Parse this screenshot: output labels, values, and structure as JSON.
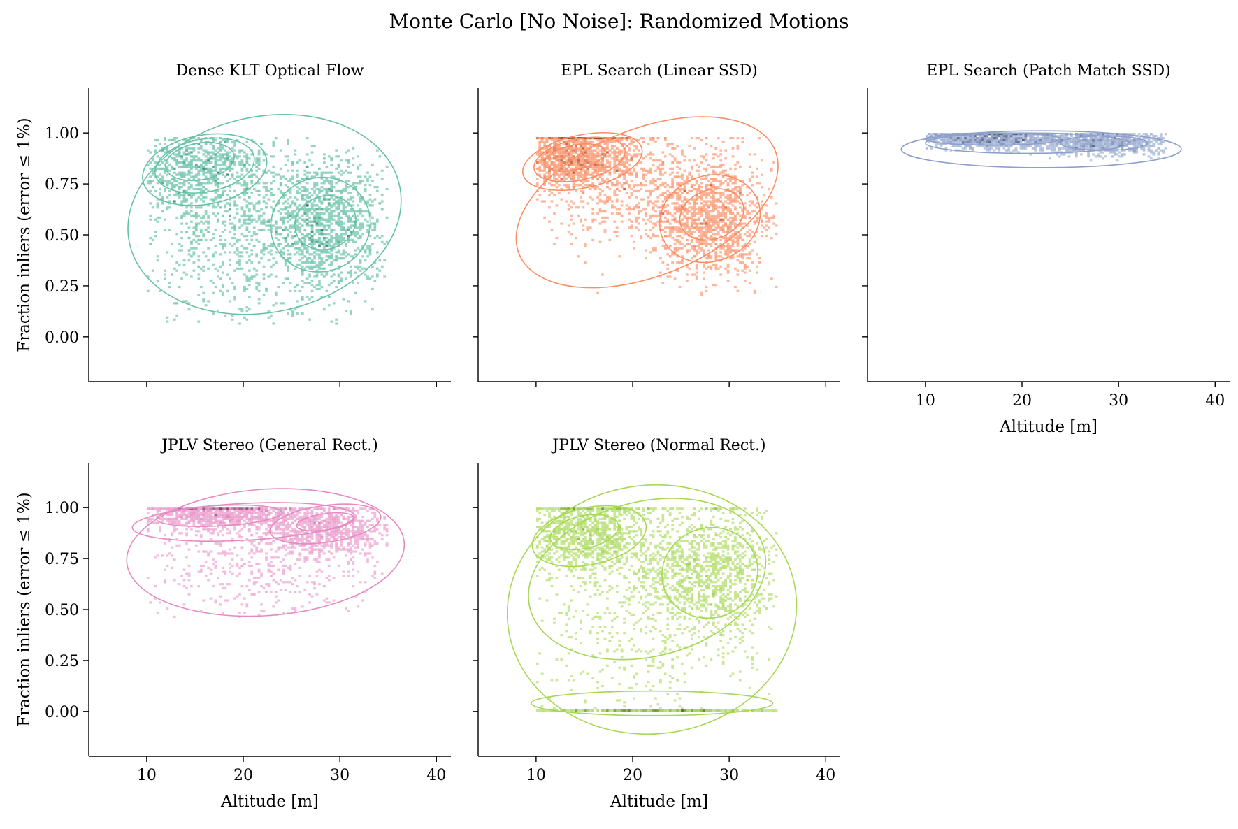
{
  "figure_title": "Monte Carlo [No Noise]: Randomized Motions",
  "chart_data": [
    {
      "type": "heatmap",
      "title": "Dense KLT Optical Flow",
      "xlabel": "",
      "ylabel": "Fraction inliers (error ≤ 1%)",
      "color": "#66c2a5",
      "xlim": [
        4,
        41.5
      ],
      "ylim": [
        -0.22,
        1.22
      ],
      "xticks": [
        10,
        20,
        30,
        40
      ],
      "yticks": [
        0.0,
        0.25,
        0.5,
        0.75,
        1.0
      ],
      "xtick_labels": [],
      "ytick_labels": [
        "0.00",
        "0.25",
        "0.50",
        "0.75",
        "1.00"
      ],
      "clusters": [
        {
          "x": 15.5,
          "y": 0.83,
          "sx": 3.6,
          "sy": 0.12,
          "n": 900,
          "cap": 1.0
        },
        {
          "x": 28.5,
          "y": 0.55,
          "sx": 3.2,
          "sy": 0.16,
          "n": 1100,
          "cap": 1.0
        },
        {
          "x": 20.0,
          "y": 0.5,
          "sx": 6.5,
          "sy": 0.25,
          "n": 900,
          "cap": 1.0
        }
      ],
      "xrange": [
        10,
        35
      ],
      "yrange": [
        0.06,
        0.98
      ],
      "contours": [
        {
          "x": 22.2,
          "y": 0.6,
          "rx": 14.3,
          "ry": 0.48,
          "tilt": -12
        },
        {
          "x": 16.0,
          "y": 0.82,
          "rx": 6.5,
          "ry": 0.17,
          "tilt": -10
        },
        {
          "x": 16.0,
          "y": 0.84,
          "rx": 5.2,
          "ry": 0.13,
          "tilt": -10
        },
        {
          "x": 15.5,
          "y": 0.86,
          "rx": 3.6,
          "ry": 0.09,
          "tilt": -10
        },
        {
          "x": 28.0,
          "y": 0.55,
          "rx": 5.2,
          "ry": 0.23,
          "tilt": -20
        },
        {
          "x": 28.5,
          "y": 0.56,
          "rx": 3.2,
          "ry": 0.13,
          "tilt": -20
        }
      ]
    },
    {
      "type": "heatmap",
      "title": "EPL Search (Linear SSD)",
      "xlabel": "",
      "ylabel": "",
      "color": "#fc8d62",
      "xlim": [
        4,
        41.5
      ],
      "ylim": [
        -0.22,
        1.22
      ],
      "xticks": [
        10,
        20,
        30,
        40
      ],
      "yticks": [
        0.0,
        0.25,
        0.5,
        0.75,
        1.0
      ],
      "xtick_labels": [],
      "ytick_labels": [],
      "clusters": [
        {
          "x": 14.0,
          "y": 0.88,
          "sx": 3.2,
          "sy": 0.08,
          "n": 1400,
          "cap": 0.98
        },
        {
          "x": 28.0,
          "y": 0.58,
          "sx": 3.0,
          "sy": 0.14,
          "n": 1200,
          "cap": 0.98
        },
        {
          "x": 21.0,
          "y": 0.7,
          "sx": 5.0,
          "sy": 0.15,
          "n": 600,
          "cap": 0.98
        }
      ],
      "xrange": [
        10,
        35
      ],
      "yrange": [
        0.2,
        0.98
      ],
      "contours": [
        {
          "x": 21.5,
          "y": 0.66,
          "rx": 14.3,
          "ry": 0.36,
          "tilt": -22
        },
        {
          "x": 14.8,
          "y": 0.86,
          "rx": 6.3,
          "ry": 0.13,
          "tilt": -12
        },
        {
          "x": 14.5,
          "y": 0.87,
          "rx": 4.8,
          "ry": 0.1,
          "tilt": -12
        },
        {
          "x": 14.0,
          "y": 0.88,
          "rx": 3.2,
          "ry": 0.06,
          "tilt": -12
        },
        {
          "x": 28.0,
          "y": 0.58,
          "rx": 5.3,
          "ry": 0.21,
          "tilt": -20
        },
        {
          "x": 28.2,
          "y": 0.6,
          "rx": 3.4,
          "ry": 0.12,
          "tilt": -20
        }
      ]
    },
    {
      "type": "heatmap",
      "title": "EPL Search (Patch Match SSD)",
      "xlabel": "Altitude [m]",
      "ylabel": "",
      "color": "#8da0cb",
      "xlim": [
        4,
        41.5
      ],
      "ylim": [
        -0.22,
        1.22
      ],
      "xticks": [
        10,
        20,
        30,
        40
      ],
      "yticks": [
        0.0,
        0.25,
        0.5,
        0.75,
        1.0
      ],
      "xtick_labels": [
        "10",
        "20",
        "30",
        "40"
      ],
      "ytick_labels": [],
      "clusters": [
        {
          "x": 17.0,
          "y": 0.97,
          "sx": 4.0,
          "sy": 0.025,
          "n": 1200,
          "cap": 1.0
        },
        {
          "x": 28.5,
          "y": 0.95,
          "sx": 3.5,
          "sy": 0.03,
          "n": 900,
          "cap": 1.0
        }
      ],
      "xrange": [
        10,
        35
      ],
      "yrange": [
        0.8,
        1.0
      ],
      "contours": [
        {
          "x": 22.0,
          "y": 0.92,
          "rx": 14.5,
          "ry": 0.09,
          "tilt": 0
        },
        {
          "x": 20.5,
          "y": 0.95,
          "rx": 10.5,
          "ry": 0.05,
          "tilt": 0
        },
        {
          "x": 17.0,
          "y": 0.97,
          "rx": 7.0,
          "ry": 0.03,
          "tilt": 0
        },
        {
          "x": 28.5,
          "y": 0.95,
          "rx": 4.5,
          "ry": 0.035,
          "tilt": 0
        }
      ]
    },
    {
      "type": "heatmap",
      "title": "JPLV Stereo (General Rect.)",
      "xlabel": "Altitude [m]",
      "ylabel": "Fraction inliers (error ≤ 1%)",
      "color": "#e78ac3",
      "xlim": [
        4,
        41.5
      ],
      "ylim": [
        -0.22,
        1.22
      ],
      "xticks": [
        10,
        20,
        30,
        40
      ],
      "yticks": [
        0.0,
        0.25,
        0.5,
        0.75,
        1.0
      ],
      "xtick_labels": [
        "10",
        "20",
        "30",
        "40"
      ],
      "ytick_labels": [
        "0.00",
        "0.25",
        "0.50",
        "0.75",
        "1.00"
      ],
      "clusters": [
        {
          "x": 17.0,
          "y": 0.97,
          "sx": 4.0,
          "sy": 0.04,
          "n": 1100,
          "cap": 1.0
        },
        {
          "x": 28.5,
          "y": 0.9,
          "sx": 3.5,
          "sy": 0.06,
          "n": 900,
          "cap": 1.0
        },
        {
          "x": 22.0,
          "y": 0.72,
          "sx": 7.0,
          "sy": 0.13,
          "n": 500,
          "cap": 1.0
        }
      ],
      "xrange": [
        10,
        35
      ],
      "yrange": [
        0.46,
        1.0
      ],
      "contours": [
        {
          "x": 22.3,
          "y": 0.78,
          "rx": 14.4,
          "ry": 0.31,
          "tilt": -4
        },
        {
          "x": 20.0,
          "y": 0.93,
          "rx": 11.5,
          "ry": 0.09,
          "tilt": -3
        },
        {
          "x": 17.5,
          "y": 0.96,
          "rx": 6.5,
          "ry": 0.05,
          "tilt": -3
        },
        {
          "x": 28.5,
          "y": 0.92,
          "rx": 5.8,
          "ry": 0.09,
          "tilt": -8
        },
        {
          "x": 28.5,
          "y": 0.93,
          "rx": 3.0,
          "ry": 0.04,
          "tilt": -8
        }
      ]
    },
    {
      "type": "heatmap",
      "title": "JPLV Stereo (Normal Rect.)",
      "xlabel": "Altitude [m]",
      "ylabel": "",
      "color": "#a6d854",
      "xlim": [
        4,
        41.5
      ],
      "ylim": [
        -0.22,
        1.22
      ],
      "xticks": [
        10,
        20,
        30,
        40
      ],
      "yticks": [
        0.0,
        0.25,
        0.5,
        0.75,
        1.0
      ],
      "xtick_labels": [
        "10",
        "20",
        "30",
        "40"
      ],
      "ytick_labels": [],
      "clusters": [
        {
          "x": 15.0,
          "y": 0.88,
          "sx": 3.5,
          "sy": 0.1,
          "n": 1100,
          "cap": 1.0
        },
        {
          "x": 28.0,
          "y": 0.67,
          "sx": 3.5,
          "sy": 0.15,
          "n": 1100,
          "cap": 1.0
        },
        {
          "x": 21.0,
          "y": 0.5,
          "sx": 7.0,
          "sy": 0.3,
          "n": 700,
          "cap": 1.0
        },
        {
          "x": 22.0,
          "y": 0.005,
          "sx": 7.5,
          "sy": 0.002,
          "n": 350,
          "cap": 1.0
        }
      ],
      "xrange": [
        10,
        35
      ],
      "yrange": [
        0.0,
        1.0
      ],
      "contours": [
        {
          "x": 22.0,
          "y": 0.5,
          "rx": 15.0,
          "ry": 0.61,
          "tilt": -6
        },
        {
          "x": 21.5,
          "y": 0.65,
          "rx": 12.5,
          "ry": 0.38,
          "tilt": -14
        },
        {
          "x": 15.5,
          "y": 0.86,
          "rx": 6.0,
          "ry": 0.14,
          "tilt": -12
        },
        {
          "x": 15.0,
          "y": 0.88,
          "rx": 3.6,
          "ry": 0.08,
          "tilt": -12
        },
        {
          "x": 28.0,
          "y": 0.68,
          "rx": 5.0,
          "ry": 0.22,
          "tilt": -20
        },
        {
          "x": 22.0,
          "y": 0.04,
          "rx": 12.5,
          "ry": 0.06,
          "tilt": 0
        }
      ]
    }
  ]
}
